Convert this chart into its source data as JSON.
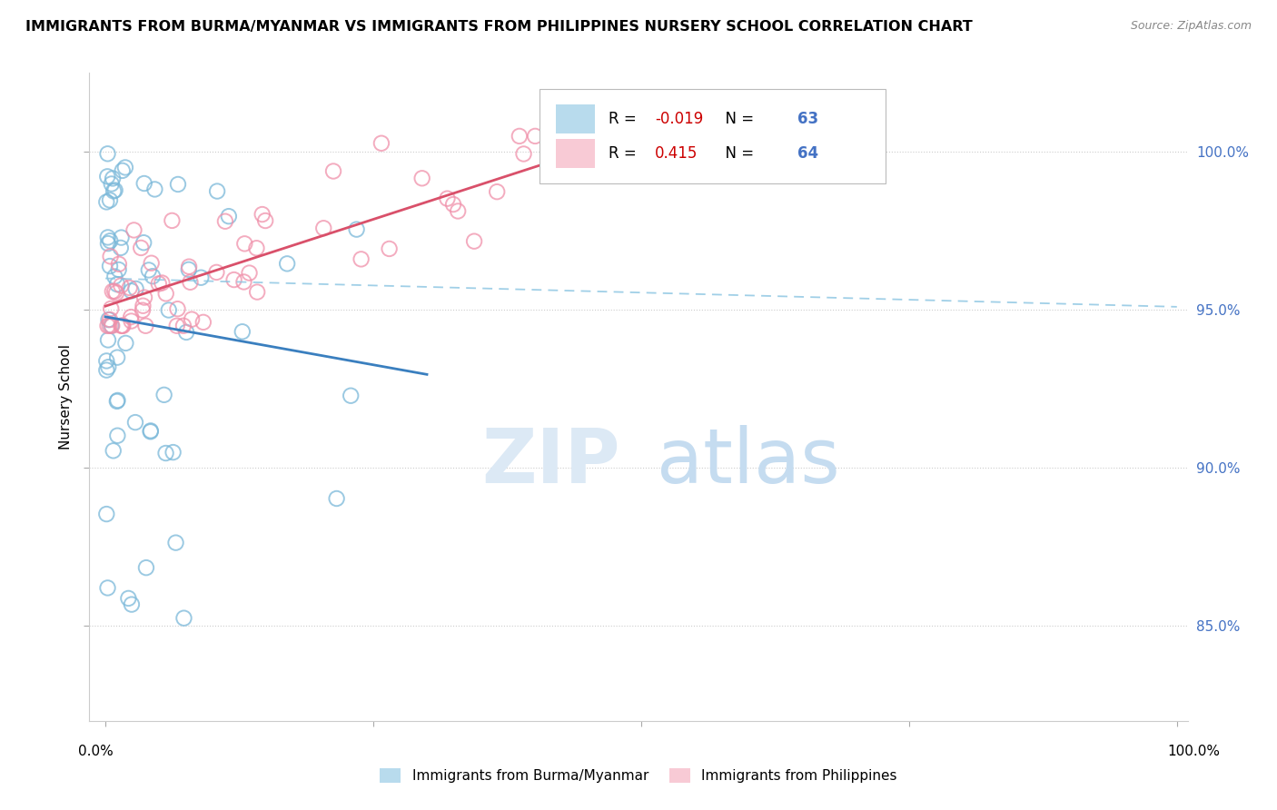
{
  "title": "IMMIGRANTS FROM BURMA/MYANMAR VS IMMIGRANTS FROM PHILIPPINES NURSERY SCHOOL CORRELATION CHART",
  "source": "Source: ZipAtlas.com",
  "ylabel": "Nursery School",
  "legend_blue_r": "-0.019",
  "legend_blue_n": "63",
  "legend_pink_r": "0.415",
  "legend_pink_n": "64",
  "legend_blue_label": "Immigrants from Burma/Myanmar",
  "legend_pink_label": "Immigrants from Philippines",
  "xlim": [
    0.0,
    1.0
  ],
  "ylim": [
    0.82,
    1.025
  ],
  "yticks": [
    0.85,
    0.9,
    0.95,
    1.0
  ],
  "ytick_labels": [
    "85.0%",
    "90.0%",
    "95.0%",
    "100.0%"
  ],
  "grid_color": "#cccccc",
  "blue_color": "#89c4e1",
  "pink_color": "#f4a7b9",
  "blue_line_color": "#3a7fbf",
  "pink_line_color": "#d9506a",
  "blue_scatter_edge": "#7ab8d9",
  "pink_scatter_edge": "#f090aa",
  "watermark_zip_color": "#dce9f5",
  "watermark_atlas_color": "#c5dcf0"
}
